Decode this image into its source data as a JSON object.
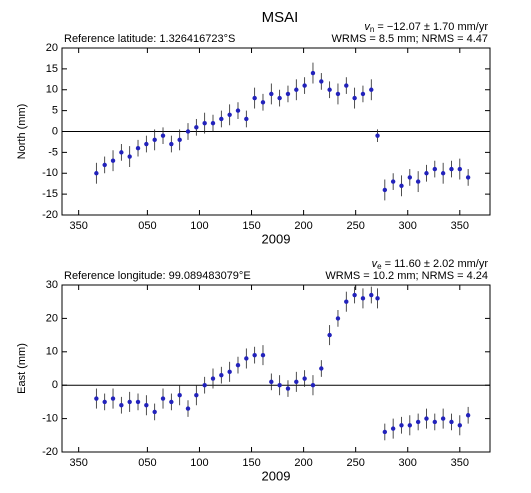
{
  "chart_data": [
    {
      "type": "scatter",
      "title": "MSAI",
      "subtitle_left": "Reference latitude: 1.326416723°S",
      "rate_symbol": "v",
      "rate_sub": "n",
      "rate_text": " = −12.07 ± 1.70 mm/yr",
      "stats": "WRMS = 8.5 mm; NRMS = 4.47",
      "xlabel": "2009",
      "ylabel": "North (mm)",
      "color": "#2222bb",
      "hline": 0,
      "x": [
        1,
        9,
        17,
        25,
        33,
        41,
        49,
        57,
        65,
        73,
        81,
        89,
        97,
        105,
        113,
        121,
        129,
        137,
        145,
        153,
        161,
        169,
        177,
        185,
        193,
        201,
        209,
        217,
        225,
        233,
        241,
        249,
        257,
        265,
        271,
        278,
        286,
        294,
        302,
        310,
        318,
        326,
        334,
        342,
        350,
        358
      ],
      "values": [
        -10,
        -8,
        -7,
        -5,
        -6,
        -4,
        -3,
        -2,
        -1,
        -3,
        -2,
        0,
        1,
        2,
        2,
        3,
        4,
        5,
        3,
        8,
        7,
        9,
        8,
        9,
        10,
        11,
        14,
        12,
        10,
        9,
        11,
        8,
        9,
        10,
        -1,
        -14,
        -12,
        -13,
        -11,
        -12,
        -10,
        -9,
        -10,
        -9,
        -9,
        -11
      ],
      "errors": [
        2.5,
        2,
        2.5,
        2,
        2.5,
        2,
        2,
        2.5,
        2,
        2,
        2.5,
        2,
        2,
        2.5,
        2,
        2,
        2.5,
        2,
        2,
        2.5,
        2,
        2.5,
        2,
        2,
        2.5,
        2,
        2.5,
        2,
        2,
        2.5,
        2,
        2.5,
        2,
        2.5,
        1.5,
        2.5,
        2,
        2.5,
        2,
        2.5,
        2,
        2,
        2.5,
        2,
        2.5,
        2
      ],
      "xlim": [
        -32,
        379
      ],
      "ylim": [
        -20,
        20
      ],
      "xticks": [
        {
          "value": -16,
          "label": "350"
        },
        {
          "value": 50,
          "label": "050"
        },
        100,
        150,
        200,
        250,
        300,
        350
      ],
      "yticks": [
        -20,
        -15,
        -10,
        -5,
        0,
        5,
        10,
        15,
        20
      ]
    },
    {
      "type": "scatter",
      "subtitle_left": "Reference longitude: 99.089483079°E",
      "rate_symbol": "v",
      "rate_sub": "e",
      "rate_text": " = 11.60 ± 2.02 mm/yr",
      "stats": "WRMS = 10.2 mm; NRMS = 4.24",
      "xlabel": "2009",
      "ylabel": "East (mm)",
      "color": "#2222bb",
      "hline": 0,
      "x": [
        1,
        9,
        17,
        25,
        33,
        41,
        49,
        57,
        65,
        73,
        81,
        89,
        97,
        105,
        113,
        121,
        129,
        137,
        145,
        153,
        161,
        169,
        177,
        185,
        193,
        201,
        209,
        217,
        225,
        233,
        241,
        249,
        257,
        265,
        271,
        278,
        286,
        294,
        302,
        310,
        318,
        326,
        334,
        342,
        350,
        358
      ],
      "values": [
        -4,
        -5,
        -4,
        -6,
        -5,
        -5,
        -6,
        -8,
        -4,
        -5,
        -3,
        -7,
        -3,
        0,
        2,
        3,
        4,
        6,
        8,
        9,
        9,
        1,
        0,
        -1,
        1,
        2,
        0,
        5,
        15,
        20,
        25,
        27,
        26,
        27,
        26,
        -14,
        -13,
        -12,
        -12,
        -11,
        -10,
        -11,
        -10,
        -11,
        -12,
        -9
      ],
      "errors": [
        3,
        2.5,
        3,
        2.5,
        3,
        2.5,
        3,
        2.5,
        3,
        2.5,
        3,
        2.5,
        3,
        2.5,
        3,
        2.5,
        3,
        2.5,
        3,
        2.5,
        3,
        2.5,
        3,
        2.5,
        3,
        2.5,
        3,
        2.5,
        3,
        2.5,
        3,
        2.5,
        3,
        2.5,
        3,
        2.5,
        3,
        2.5,
        3,
        2.5,
        3,
        2.5,
        3,
        2.5,
        3,
        2.5
      ],
      "xlim": [
        -32,
        379
      ],
      "ylim": [
        -20,
        30
      ],
      "xticks": [
        {
          "value": -16,
          "label": "350"
        },
        {
          "value": 50,
          "label": "050"
        },
        100,
        150,
        200,
        250,
        300,
        350
      ],
      "yticks": [
        -20,
        -10,
        0,
        10,
        20,
        30
      ]
    }
  ]
}
